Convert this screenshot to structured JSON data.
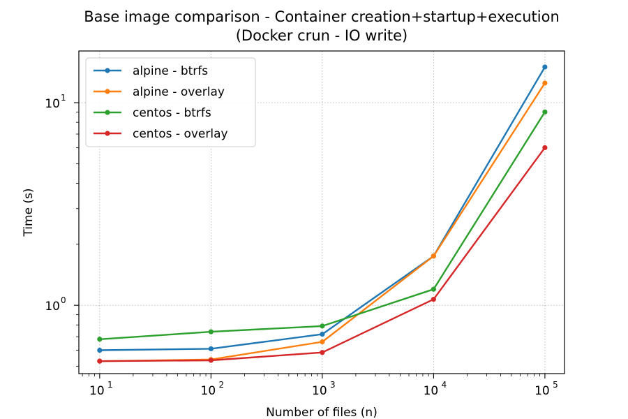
{
  "chart_data": {
    "type": "line",
    "title": "Base image comparison - Container creation+startup+execution",
    "subtitle": "(Docker crun - IO write)",
    "xlabel": "Number of files (n)",
    "ylabel": "Time (s)",
    "x": [
      10,
      100,
      1000,
      10000,
      100000
    ],
    "x_tick_labels": [
      {
        "base": "10",
        "exp": "1"
      },
      {
        "base": "10",
        "exp": "2"
      },
      {
        "base": "10",
        "exp": "3"
      },
      {
        "base": "10",
        "exp": "4"
      },
      {
        "base": "10",
        "exp": "5"
      }
    ],
    "y_tick_labels": [
      {
        "value": 1,
        "base": "10",
        "exp": "0"
      },
      {
        "value": 10,
        "base": "10",
        "exp": "1"
      }
    ],
    "xscale": "log",
    "yscale": "log",
    "xlim": [
      6.5,
      150000
    ],
    "ylim": [
      0.46,
      18
    ],
    "grid": true,
    "legend_position": "top-left",
    "series": [
      {
        "name": "alpine - btrfs",
        "color": "#1f77b4",
        "values": [
          0.6,
          0.61,
          0.72,
          1.75,
          15.0
        ]
      },
      {
        "name": "alpine - overlay",
        "color": "#ff7f0e",
        "values": [
          0.53,
          0.54,
          0.66,
          1.75,
          12.5
        ]
      },
      {
        "name": "centos - btrfs",
        "color": "#2ca02c",
        "values": [
          0.68,
          0.74,
          0.79,
          1.2,
          9.0
        ]
      },
      {
        "name": "centos - overlay",
        "color": "#d62728",
        "values": [
          0.53,
          0.535,
          0.585,
          1.07,
          6.0
        ]
      }
    ]
  }
}
